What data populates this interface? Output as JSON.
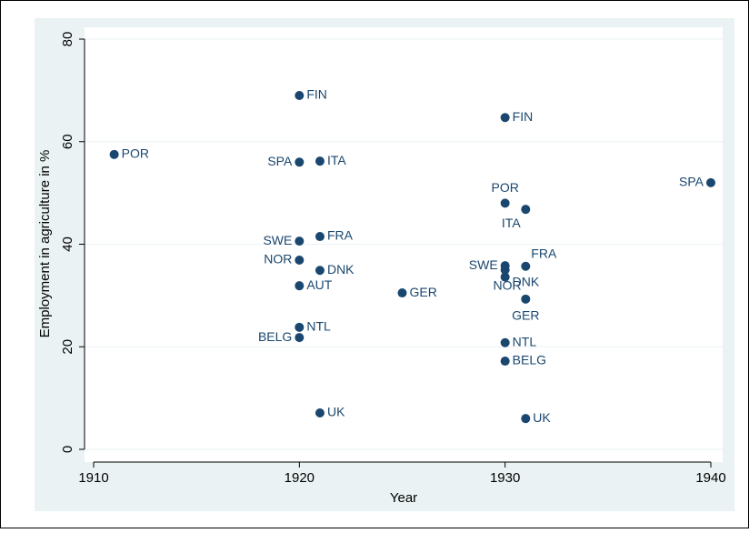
{
  "chart_data": {
    "type": "scatter",
    "x_label": "Year",
    "y_label": "Employment in agriculture in %",
    "x": [
      1911,
      1920,
      1920,
      1921,
      1920,
      1921,
      1920,
      1921,
      1920,
      1925,
      1920,
      1920,
      1921,
      1930,
      1930,
      1931,
      1940,
      1930,
      1931,
      1930,
      1930,
      1931,
      1930,
      1930,
      1931
    ],
    "values": [
      57.5,
      69,
      56,
      56.2,
      40.6,
      41.5,
      36.9,
      34.9,
      31.9,
      30.5,
      23.8,
      21.8,
      7.1,
      64.7,
      48,
      46.8,
      52,
      35.8,
      35.7,
      35,
      33.6,
      29.3,
      20.8,
      17.2,
      6
    ],
    "point_labels": [
      "POR",
      "FIN",
      "SPA",
      "ITA",
      "SWE",
      "FRA",
      "NOR",
      "DNK",
      "AUT",
      "GER",
      "NTL",
      "BELG",
      "UK",
      "FIN",
      "POR",
      "ITA",
      "SPA",
      "SWE",
      "FRA",
      "NOR",
      "DNK",
      "GER",
      "NTL",
      "BELG",
      "UK"
    ],
    "color": "#1a476f",
    "xlim": [
      1910,
      1940
    ],
    "xticks": [
      1910,
      1920,
      1930,
      1940
    ],
    "ylim": [
      0,
      80
    ],
    "yticks": [
      0,
      20,
      40,
      60,
      80
    ],
    "grid": true
  }
}
